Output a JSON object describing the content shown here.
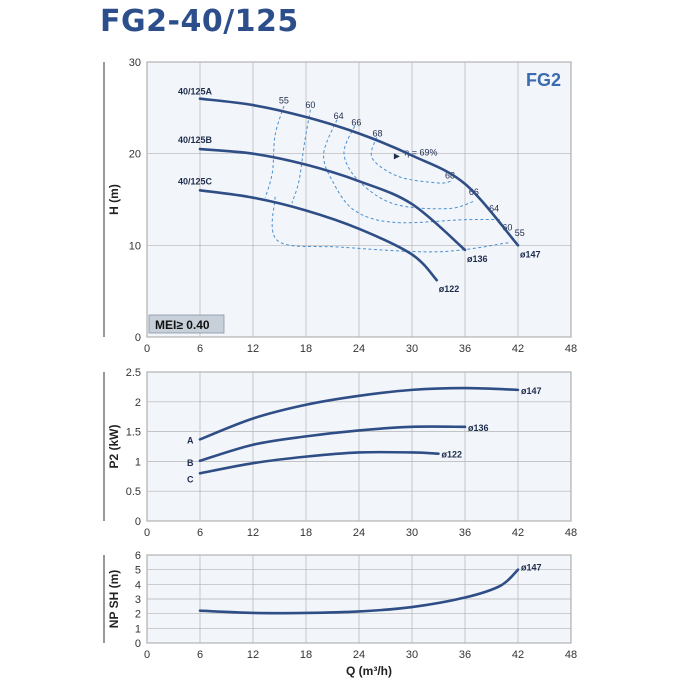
{
  "page": {
    "title": "FG2-40/125"
  },
  "colors": {
    "title": "#2c4f8c",
    "curve": "#2f4e86",
    "efficiency": "#4a90d0",
    "panel": "#f2f5fa",
    "grid": "#b3b3b3",
    "badge": "#3a6bb0",
    "mei_box": "#c7cfd9"
  },
  "chart_data": [
    {
      "type": "line",
      "id": "head",
      "ylabel": "H (m)",
      "xlabel": "",
      "xlim": [
        0,
        48
      ],
      "ylim": [
        0,
        30
      ],
      "xticks": [
        0,
        6,
        12,
        18,
        24,
        30,
        36,
        42,
        48
      ],
      "yticks": [
        0,
        10,
        20,
        30
      ],
      "grid": true,
      "badge": "FG2",
      "mei": "MEI≥ 0.40",
      "series": [
        {
          "name": "40/125A",
          "end_label": "ø147",
          "points": [
            [
              6,
              26
            ],
            [
              12,
              25.3
            ],
            [
              18,
              24
            ],
            [
              24,
              22.2
            ],
            [
              30,
              19.8
            ],
            [
              36,
              16.7
            ],
            [
              42,
              10
            ]
          ]
        },
        {
          "name": "40/125B",
          "end_label": "ø136",
          "points": [
            [
              6,
              20.5
            ],
            [
              12,
              20
            ],
            [
              18,
              18.8
            ],
            [
              24,
              17
            ],
            [
              30,
              14.5
            ],
            [
              36,
              9.5
            ]
          ]
        },
        {
          "name": "40/125C",
          "end_label": "ø122",
          "points": [
            [
              6,
              16
            ],
            [
              12,
              15.2
            ],
            [
              18,
              13.8
            ],
            [
              24,
              11.8
            ],
            [
              30,
              9
            ],
            [
              32.8,
              6.2
            ]
          ]
        }
      ],
      "efficiency": {
        "labels": [
          "55",
          "60",
          "64",
          "66",
          "68",
          "η = 69%",
          "68",
          "66",
          "64",
          "60",
          "55"
        ],
        "curves": [
          [
            [
              15.5,
              25.2
            ],
            [
              14.5,
              22
            ],
            [
              14.2,
              18
            ],
            [
              13.4,
              15.2
            ]
          ],
          [
            [
              18.5,
              24.8
            ],
            [
              17.8,
              21
            ],
            [
              17.2,
              17
            ],
            [
              16.4,
              14.6
            ]
          ],
          [
            [
              21.5,
              23.7
            ],
            [
              20,
              20
            ],
            [
              21,
              17
            ],
            [
              23.5,
              13.8
            ],
            [
              28,
              12.5
            ],
            [
              36,
              12.8
            ],
            [
              40,
              12.8
            ]
          ],
          [
            [
              23.5,
              23
            ],
            [
              22.3,
              20
            ],
            [
              24,
              17
            ],
            [
              28,
              14.5
            ],
            [
              34,
              14
            ],
            [
              37,
              14.8
            ]
          ],
          [
            [
              26,
              21.8
            ],
            [
              25.5,
              19.5
            ],
            [
              28.5,
              17.5
            ],
            [
              33,
              16.8
            ],
            [
              34.4,
              17
            ]
          ],
          [
            [
              14.5,
              15.3
            ],
            [
              14.8,
              10.5
            ],
            [
              22,
              9.8
            ],
            [
              33,
              9.3
            ],
            [
              41,
              10.3
            ]
          ]
        ]
      }
    },
    {
      "type": "line",
      "id": "power",
      "ylabel": "P2 (kW)",
      "xlabel": "",
      "xlim": [
        0,
        48
      ],
      "ylim": [
        0,
        2.5
      ],
      "xticks": [
        0,
        6,
        12,
        18,
        24,
        30,
        36,
        42,
        48
      ],
      "yticks": [
        0,
        0.5,
        1,
        1.5,
        2,
        2.5
      ],
      "grid": true,
      "series": [
        {
          "name": "A",
          "end_label": "ø147",
          "points": [
            [
              6,
              1.37
            ],
            [
              12,
              1.72
            ],
            [
              18,
              1.95
            ],
            [
              24,
              2.1
            ],
            [
              30,
              2.2
            ],
            [
              36,
              2.23
            ],
            [
              42,
              2.2
            ]
          ]
        },
        {
          "name": "B",
          "end_label": "ø136",
          "points": [
            [
              6,
              1.01
            ],
            [
              12,
              1.28
            ],
            [
              18,
              1.42
            ],
            [
              24,
              1.52
            ],
            [
              30,
              1.58
            ],
            [
              36,
              1.58
            ]
          ]
        },
        {
          "name": "C",
          "end_label": "ø122",
          "points": [
            [
              6,
              0.8
            ],
            [
              12,
              0.97
            ],
            [
              18,
              1.08
            ],
            [
              24,
              1.15
            ],
            [
              30,
              1.15
            ],
            [
              33,
              1.13
            ]
          ]
        }
      ]
    },
    {
      "type": "line",
      "id": "npsh",
      "ylabel": "NP SH (m)",
      "xlabel": "Q (m³/h)",
      "xlim": [
        0,
        48
      ],
      "ylim": [
        0,
        6
      ],
      "xticks": [
        0,
        6,
        12,
        18,
        24,
        30,
        36,
        42,
        48
      ],
      "yticks": [
        0,
        1,
        2,
        3,
        4,
        5,
        6
      ],
      "grid": true,
      "series": [
        {
          "name": "",
          "end_label": "ø147",
          "points": [
            [
              6,
              2.2
            ],
            [
              12,
              2.05
            ],
            [
              18,
              2.05
            ],
            [
              24,
              2.15
            ],
            [
              30,
              2.45
            ],
            [
              36,
              3.1
            ],
            [
              40,
              3.9
            ],
            [
              42,
              5
            ]
          ]
        }
      ]
    }
  ]
}
